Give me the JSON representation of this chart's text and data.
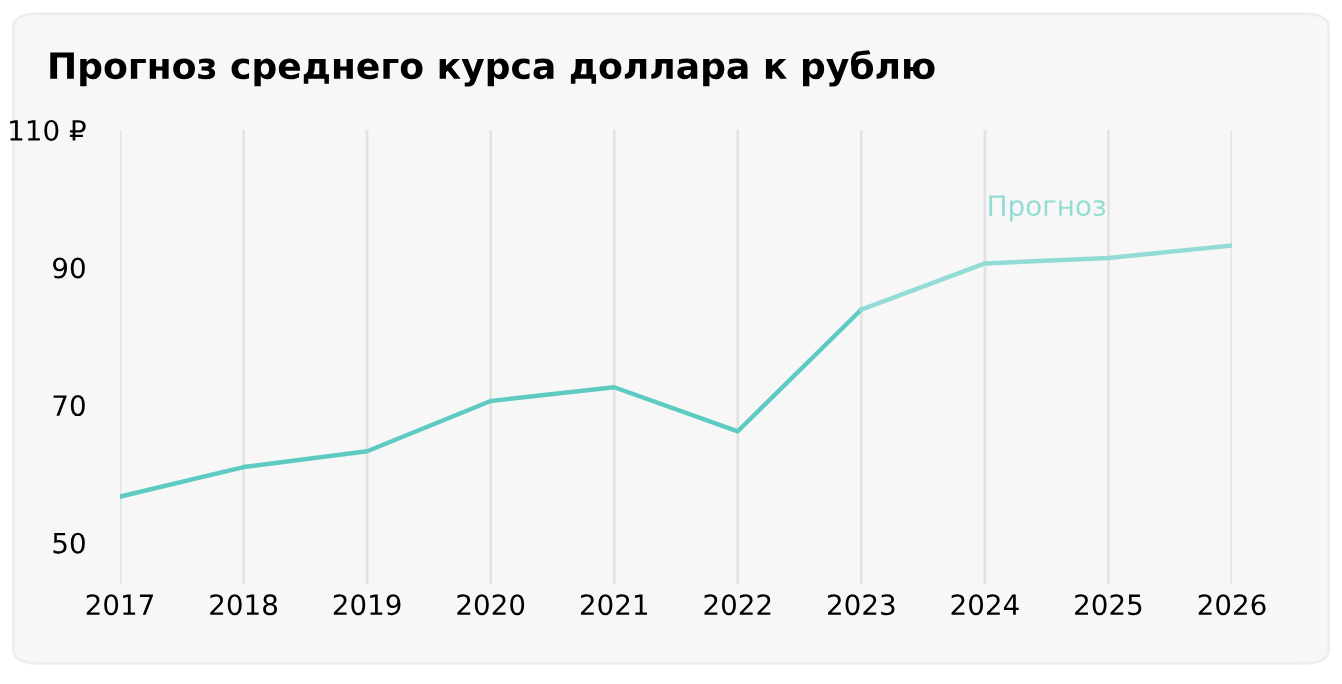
{
  "chart_data": {
    "type": "line",
    "title": "Прогноз среднего курса доллара к рублю",
    "categories": [
      "2017",
      "2018",
      "2019",
      "2020",
      "2021",
      "2022",
      "2023",
      "2024",
      "2025",
      "2026"
    ],
    "series": [
      {
        "color": "#5ecbc3",
        "values": [
          56.7,
          61,
          63.3,
          70.6,
          72.6,
          66.2,
          83.9,
          null,
          null,
          null
        ]
      },
      {
        "name": "Прогноз",
        "color": "#93dcd5",
        "values": [
          null,
          null,
          null,
          null,
          null,
          null,
          83.9,
          90.6,
          91.4,
          93.2
        ]
      }
    ],
    "ylim": [
      44,
      110
    ],
    "yticks": [
      50,
      70,
      90,
      {
        "value": 110,
        "label": "110 ₽"
      }
    ],
    "grid": "x",
    "legend": false,
    "marker": "none",
    "line_style": "solid"
  }
}
